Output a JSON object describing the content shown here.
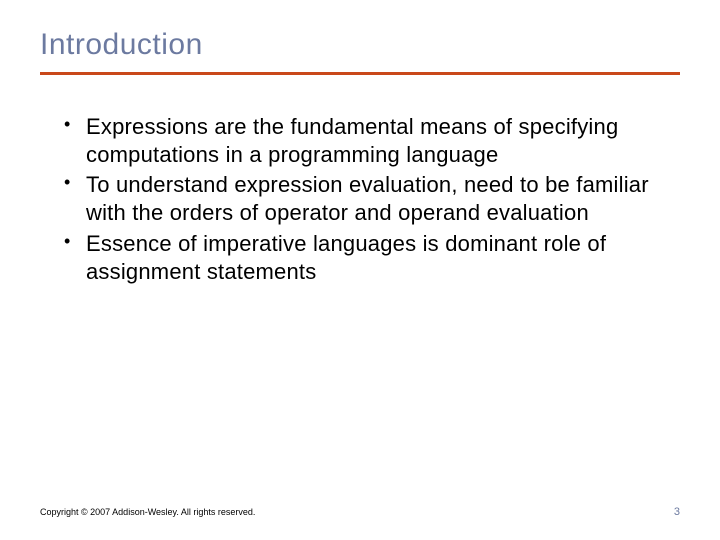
{
  "title": "Introduction",
  "title_color": "#6c7aa0",
  "rule_color": "#c9481a",
  "bullets": [
    "Expressions are the fundamental means of specifying computations in a programming language",
    "To understand expression evaluation, need to be familiar with the orders of operator and operand evaluation",
    "Essence of imperative languages is dominant role of assignment statements"
  ],
  "footer": {
    "copyright": "Copyright © 2007 Addison-Wesley. All rights reserved.",
    "page_number": "3"
  },
  "body_fontsize": 22,
  "title_fontsize": 30
}
